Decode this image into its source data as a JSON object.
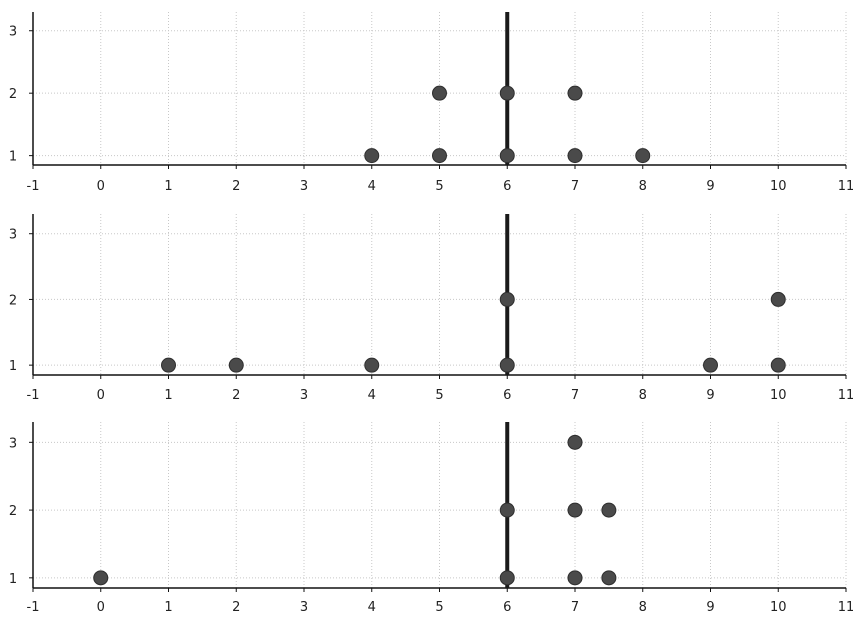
{
  "chart_data": [
    {
      "type": "scatter",
      "xlim": [
        -1,
        11
      ],
      "ylim": [
        0.85,
        3.3
      ],
      "x_ticks": [
        "-1",
        "0",
        "1",
        "2",
        "3",
        "4",
        "5",
        "6",
        "7",
        "8",
        "9",
        "10",
        "11"
      ],
      "y_ticks": [
        "1",
        "2",
        "3"
      ],
      "grid": true,
      "reference_line_x": 6,
      "points": [
        {
          "x": 4,
          "y": 1
        },
        {
          "x": 5,
          "y": 1
        },
        {
          "x": 6,
          "y": 1
        },
        {
          "x": 7,
          "y": 1
        },
        {
          "x": 8,
          "y": 1
        },
        {
          "x": 5,
          "y": 2
        },
        {
          "x": 6,
          "y": 2
        },
        {
          "x": 7,
          "y": 2
        }
      ]
    },
    {
      "type": "scatter",
      "xlim": [
        -1,
        11
      ],
      "ylim": [
        0.85,
        3.3
      ],
      "x_ticks": [
        "-1",
        "0",
        "1",
        "2",
        "3",
        "4",
        "5",
        "6",
        "7",
        "8",
        "9",
        "10",
        "11"
      ],
      "y_ticks": [
        "1",
        "2",
        "3"
      ],
      "grid": true,
      "reference_line_x": 6,
      "points": [
        {
          "x": 1,
          "y": 1
        },
        {
          "x": 2,
          "y": 1
        },
        {
          "x": 4,
          "y": 1
        },
        {
          "x": 6,
          "y": 1
        },
        {
          "x": 9,
          "y": 1
        },
        {
          "x": 10,
          "y": 1
        },
        {
          "x": 6,
          "y": 2
        },
        {
          "x": 10,
          "y": 2
        }
      ]
    },
    {
      "type": "scatter",
      "xlim": [
        -1,
        11
      ],
      "ylim": [
        0.85,
        3.3
      ],
      "x_ticks": [
        "-1",
        "0",
        "1",
        "2",
        "3",
        "4",
        "5",
        "6",
        "7",
        "8",
        "9",
        "10",
        "11"
      ],
      "y_ticks": [
        "1",
        "2",
        "3"
      ],
      "grid": true,
      "reference_line_x": 6,
      "points": [
        {
          "x": 0,
          "y": 1
        },
        {
          "x": 6,
          "y": 1
        },
        {
          "x": 7,
          "y": 1
        },
        {
          "x": 7.5,
          "y": 1
        },
        {
          "x": 6,
          "y": 2
        },
        {
          "x": 7,
          "y": 2
        },
        {
          "x": 7.5,
          "y": 2
        },
        {
          "x": 7,
          "y": 3
        }
      ]
    }
  ],
  "colors": {
    "grid": "#c8c8c8",
    "axis": "#111111",
    "marker": "#4a4a4a",
    "marker_edge": "#2e2e2e",
    "reference_line": "#1a1a1a"
  }
}
